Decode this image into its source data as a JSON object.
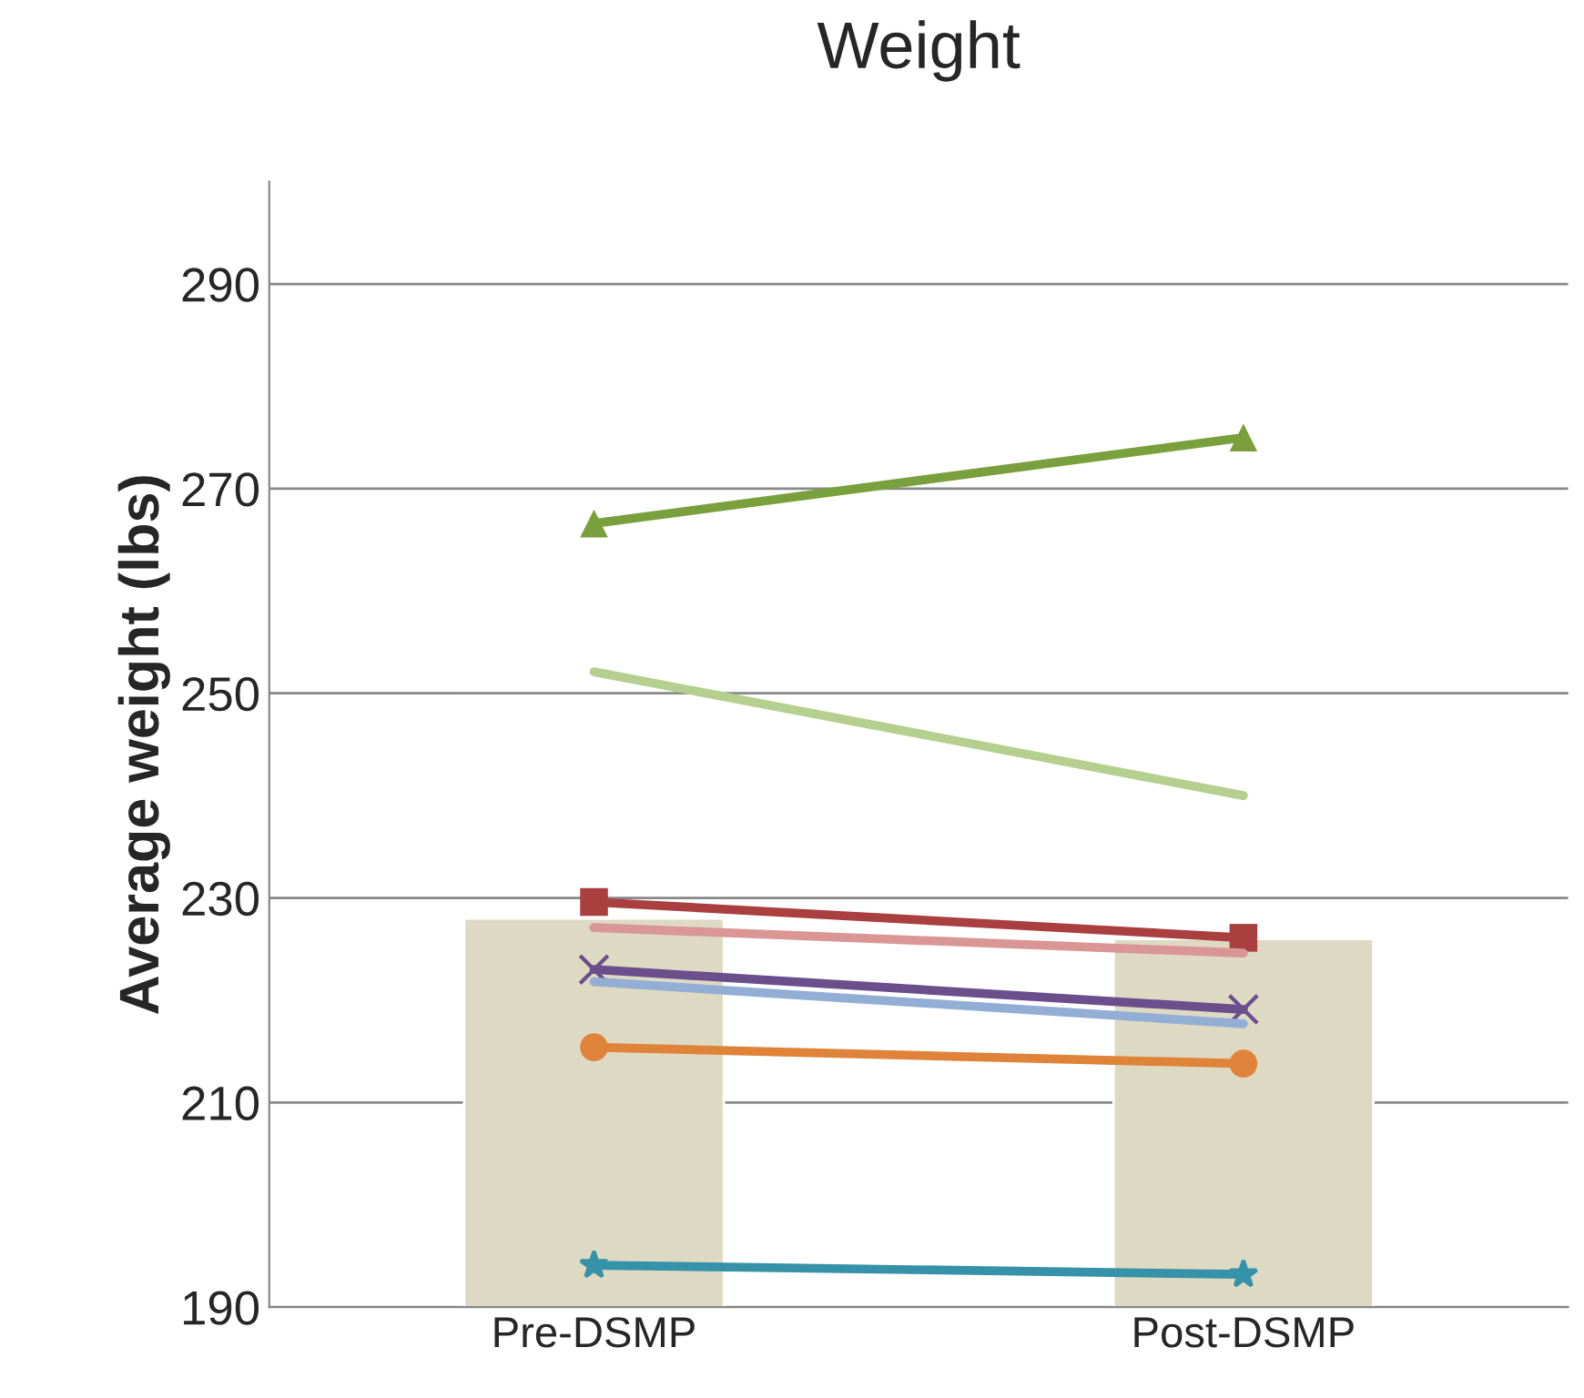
{
  "chart_data": {
    "type": "line",
    "title": "Weight",
    "ylabel": "Average weight (lbs)",
    "categories": [
      "Pre-DSMP",
      "Post-DSMP"
    ],
    "series": [
      {
        "type": "bar",
        "color": "#ddd9c3",
        "values": [
          228,
          226
        ]
      },
      {
        "color": "#79a03c",
        "marker": "triangle",
        "values": [
          266.6,
          275
        ]
      },
      {
        "color": "#b5cf8e",
        "marker": "none",
        "values": [
          252.1,
          240
        ]
      },
      {
        "color": "#a9403f",
        "marker": "square",
        "values": [
          229.6,
          226.1
        ]
      },
      {
        "color": "#d99694",
        "marker": "none",
        "values": [
          227.1,
          224.6
        ]
      },
      {
        "color": "#6a4f8c",
        "marker": "cross",
        "values": [
          223,
          219.1
        ]
      },
      {
        "color": "#93aed5",
        "marker": "none",
        "values": [
          221.8,
          217.7
        ]
      },
      {
        "color": "#e0833a",
        "marker": "circle",
        "values": [
          215.4,
          213.8
        ]
      },
      {
        "color": "#3592a8",
        "marker": "star",
        "values": [
          194.1,
          193.2
        ]
      }
    ],
    "ylim": [
      190,
      300
    ],
    "yticks": [
      190,
      210,
      230,
      250,
      270,
      290
    ],
    "grid": "y"
  }
}
